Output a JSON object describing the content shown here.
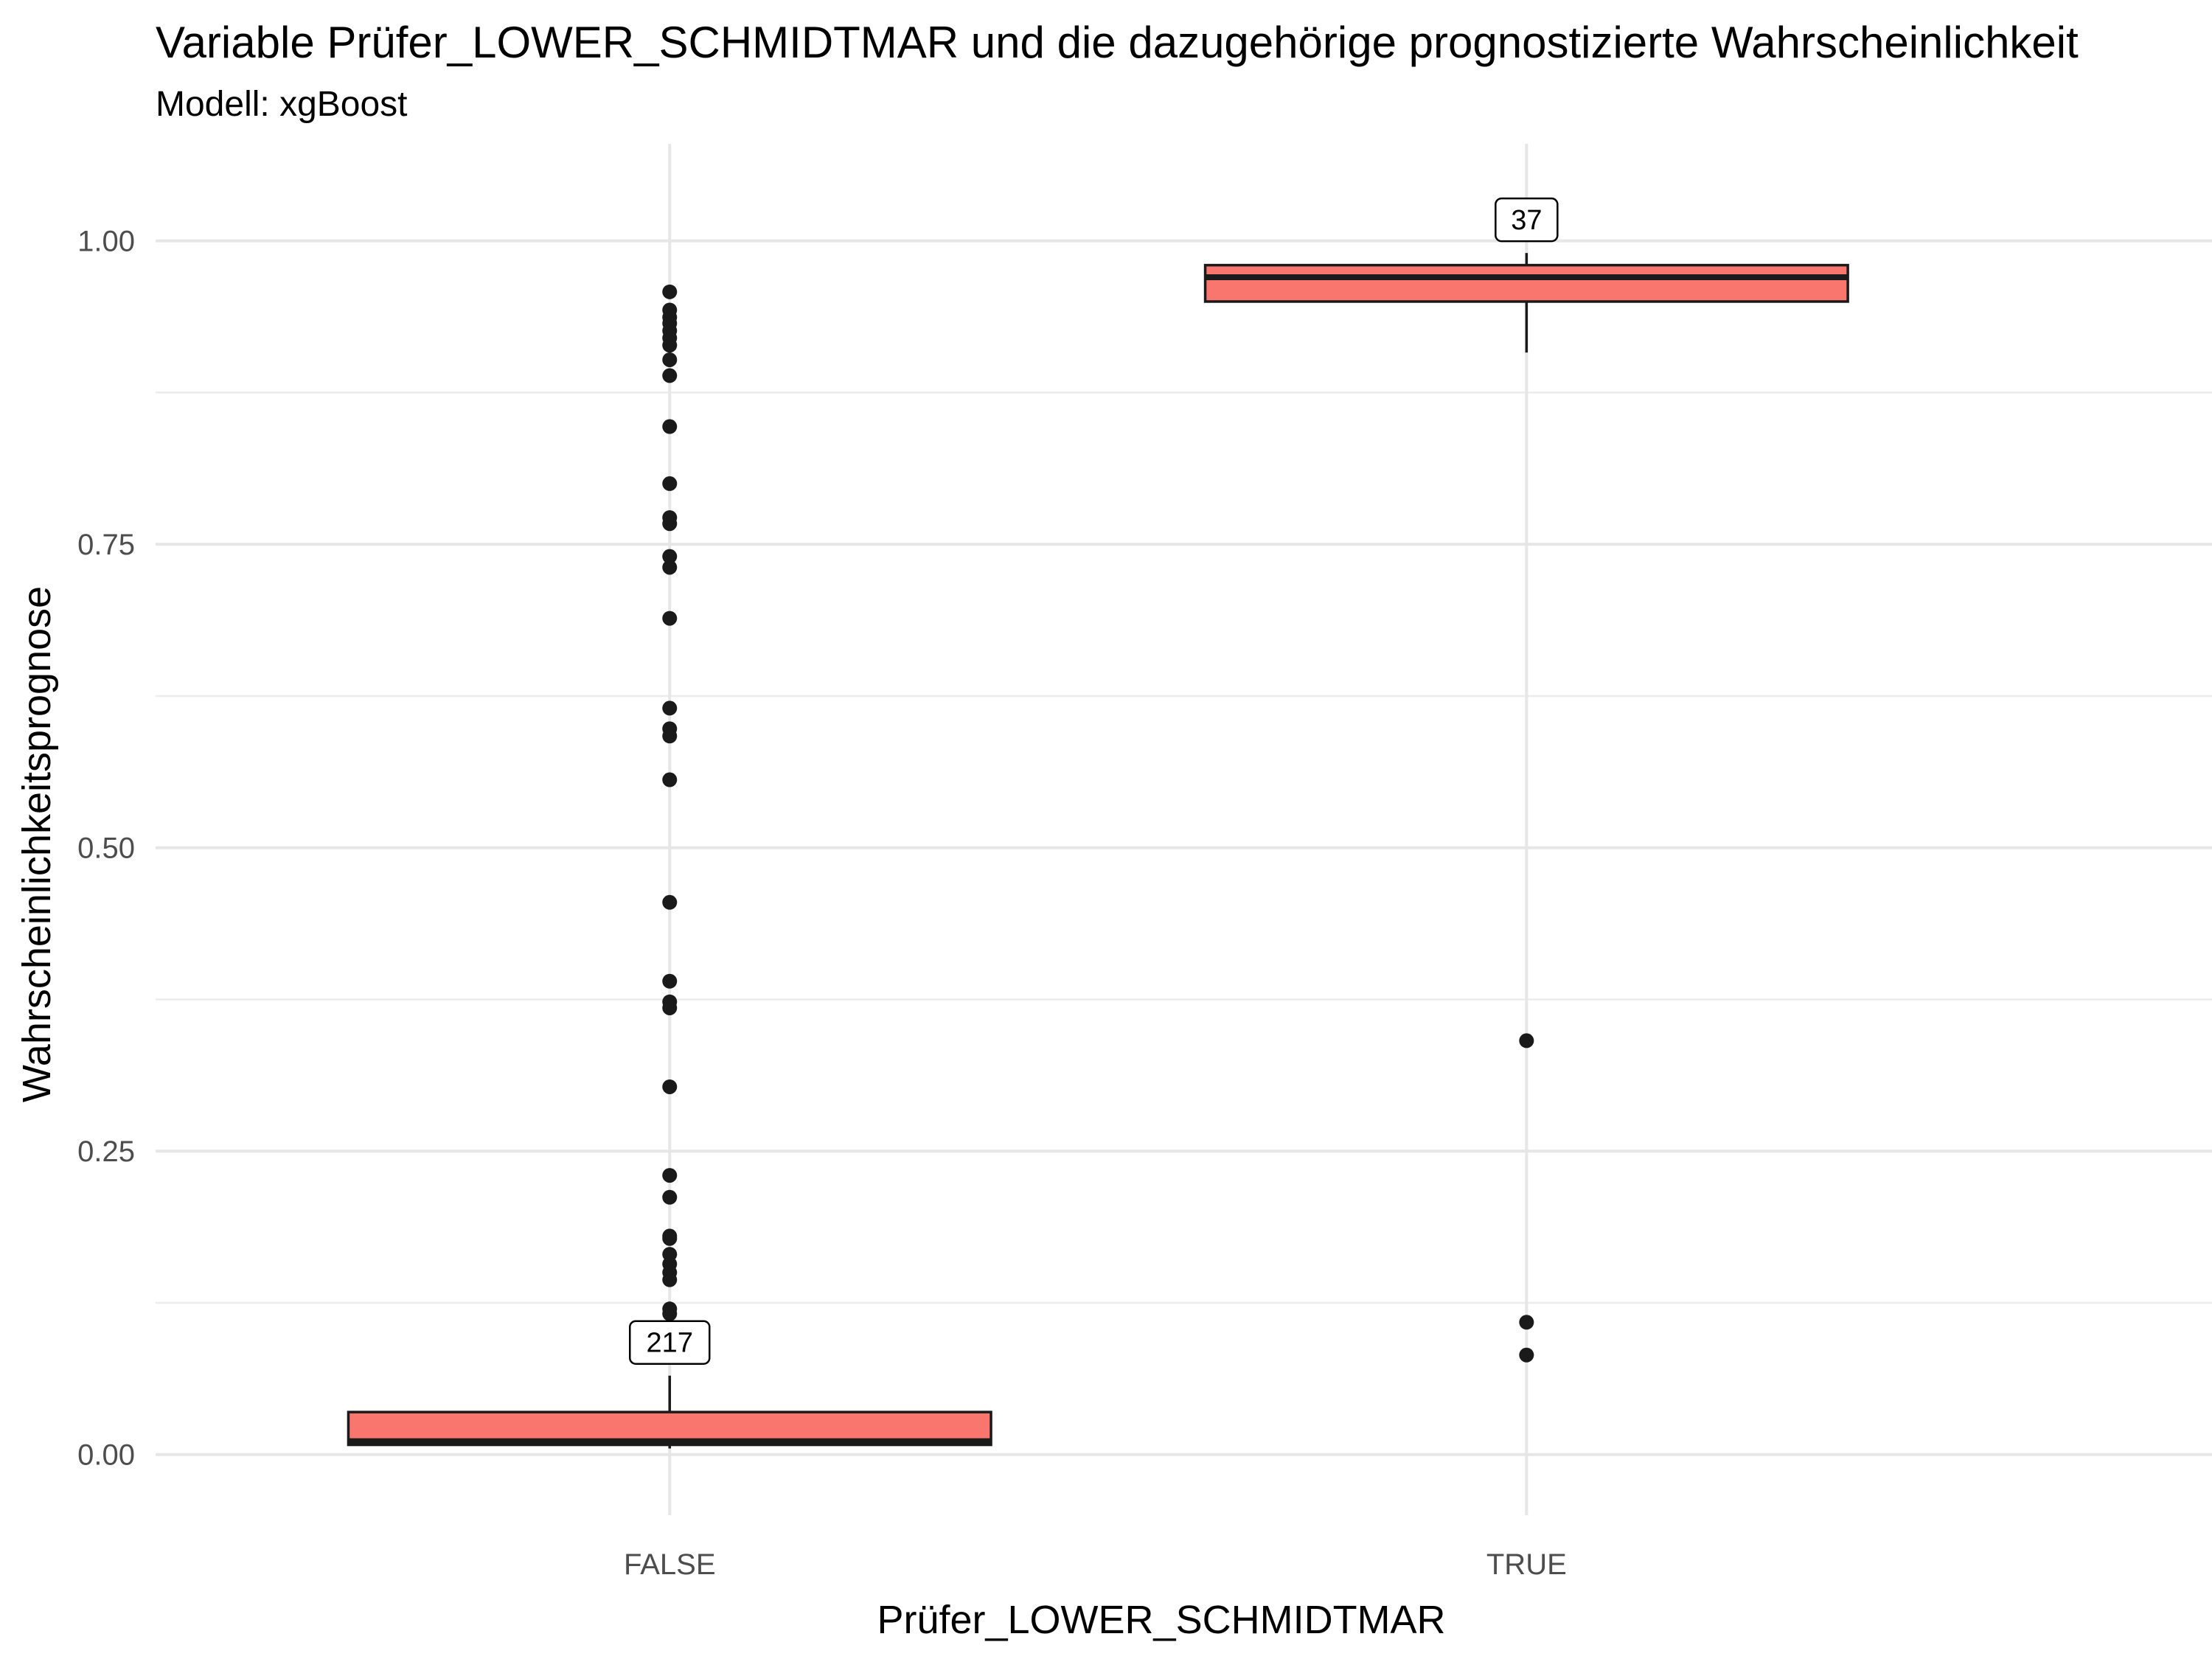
{
  "chart_data": {
    "type": "boxplot",
    "title": "Variable Prüfer_LOWER_SCHMIDTMAR und die dazugehörige prognostizierte Wahrscheinlichkeit",
    "subtitle": "Modell: xgBoost",
    "xlabel": "Prüfer_LOWER_SCHMIDTMAR",
    "ylabel": "Wahrscheinlichkeitsprognose",
    "ylim": [
      -0.05,
      1.08
    ],
    "y_ticks": [
      0.0,
      0.25,
      0.5,
      0.75,
      1.0
    ],
    "y_tick_labels": [
      "0.00",
      "0.25",
      "0.50",
      "0.75",
      "1.00"
    ],
    "grid": true,
    "legend": "none",
    "fill_color": "#F8766D",
    "categories": [
      "FALSE",
      "TRUE"
    ],
    "boxes": [
      {
        "category": "FALSE",
        "count_label": "217",
        "whisker_low": 0.005,
        "q1": 0.008,
        "median": 0.011,
        "q3": 0.035,
        "whisker_high": 0.065,
        "outliers": [
          0.958,
          0.943,
          0.937,
          0.932,
          0.926,
          0.92,
          0.914,
          0.902,
          0.889,
          0.847,
          0.8,
          0.772,
          0.767,
          0.74,
          0.731,
          0.689,
          0.615,
          0.598,
          0.592,
          0.556,
          0.455,
          0.39,
          0.373,
          0.368,
          0.303,
          0.23,
          0.212,
          0.18,
          0.178,
          0.165,
          0.157,
          0.15,
          0.144,
          0.12,
          0.116
        ]
      },
      {
        "category": "TRUE",
        "count_label": "37",
        "whisker_low": 0.908,
        "q1": 0.95,
        "median": 0.97,
        "q3": 0.98,
        "whisker_high": 0.99,
        "outliers": [
          0.341,
          0.109,
          0.082
        ]
      }
    ]
  }
}
